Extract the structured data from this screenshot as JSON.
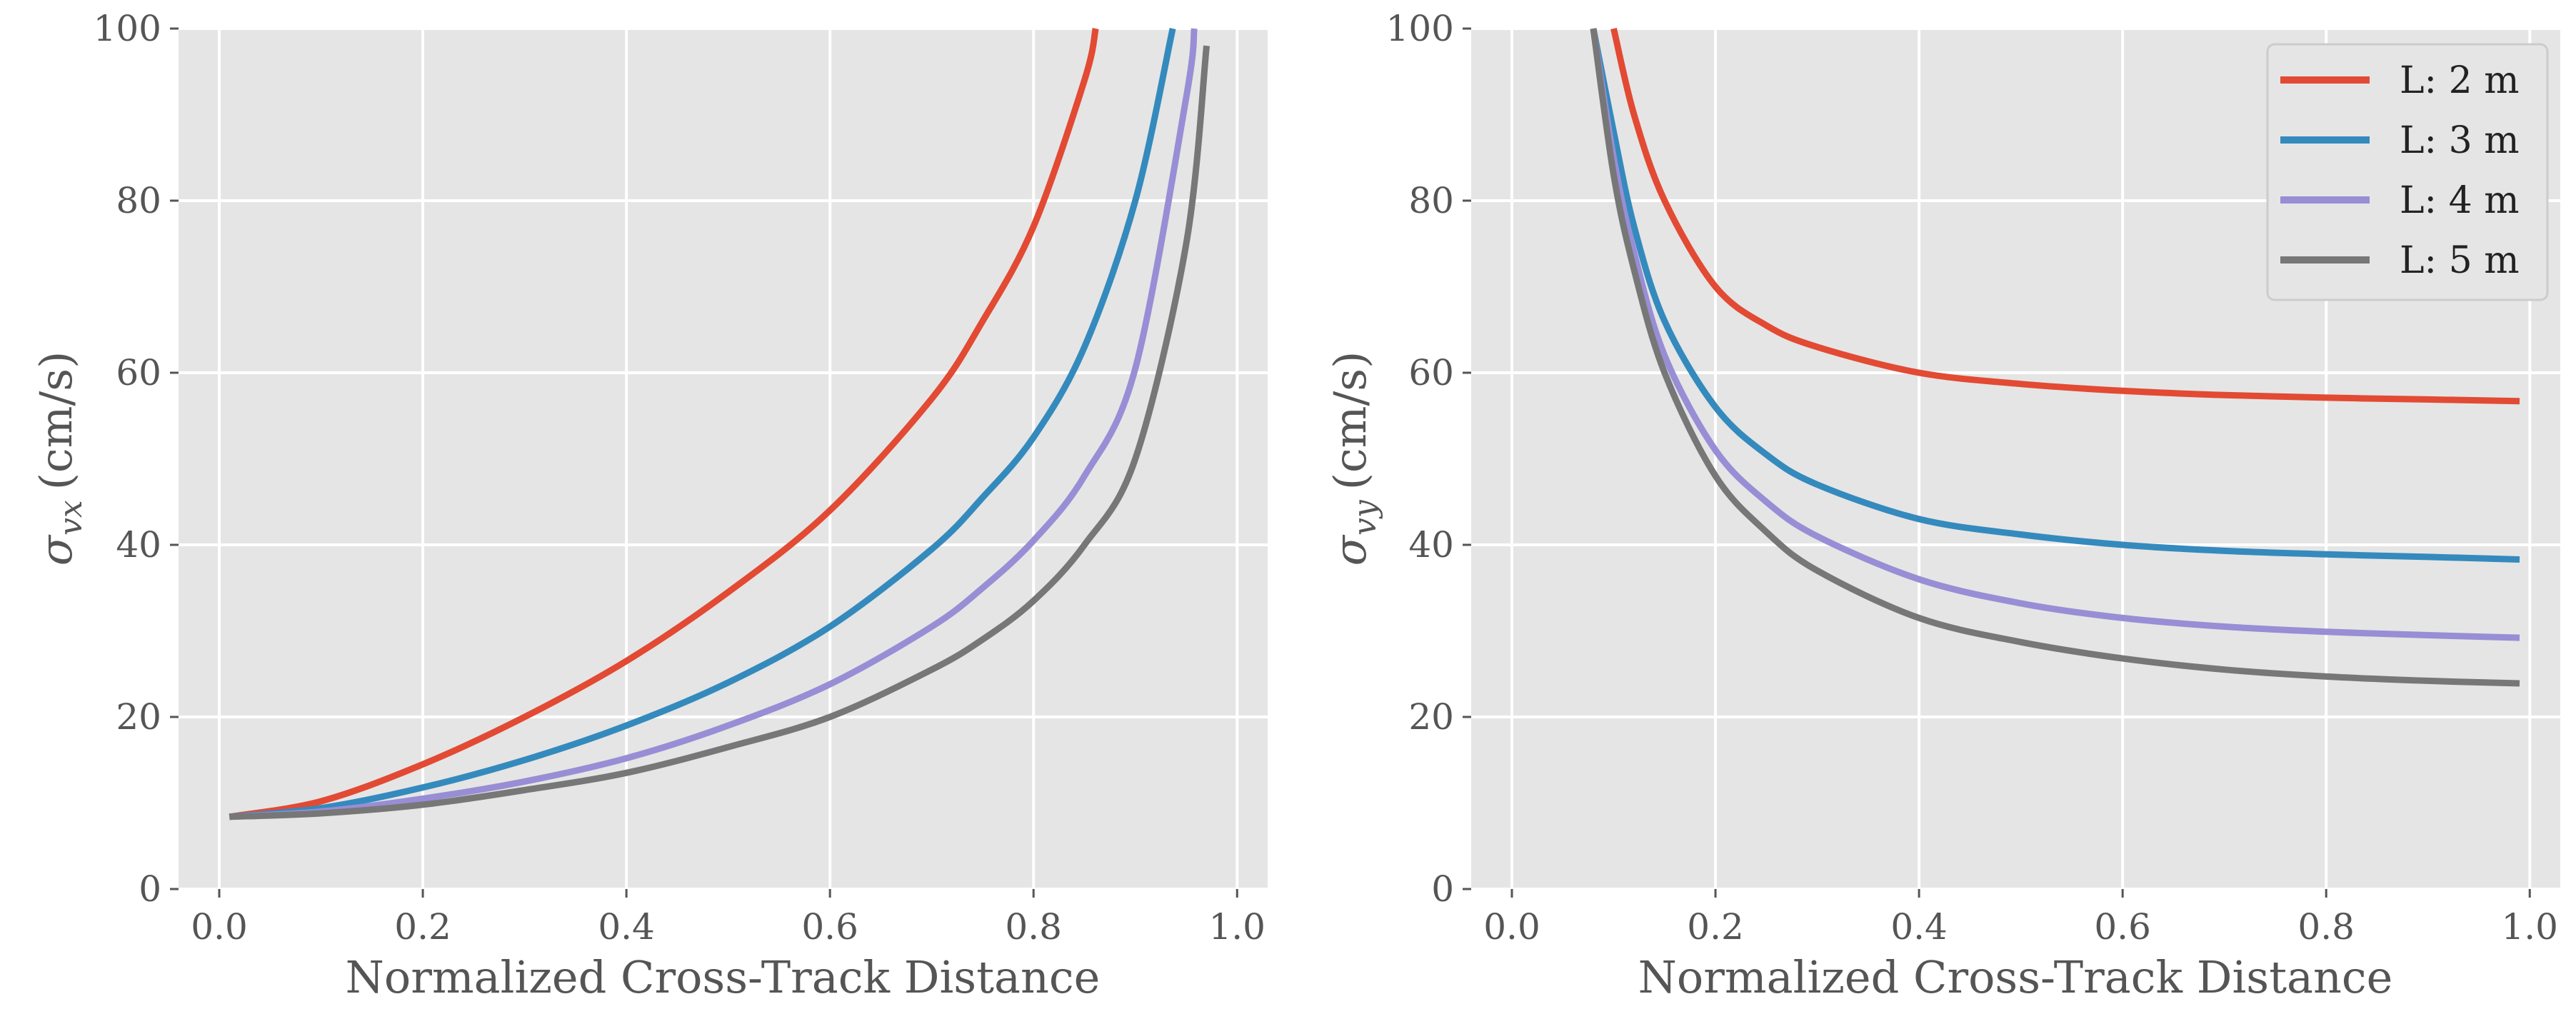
{
  "chart_data": [
    {
      "type": "line",
      "title": "",
      "xlabel": "Normalized Cross-Track Distance",
      "ylabel": "σ",
      "ylabel_subscript": "vx",
      "ylabel_unit": "(cm/s)",
      "xlim": [
        -0.04,
        1.03
      ],
      "ylim": [
        0,
        100
      ],
      "xticks": [
        "0.0",
        "0.2",
        "0.4",
        "0.6",
        "0.8",
        "1.0"
      ],
      "yticks": [
        "0",
        "20",
        "40",
        "60",
        "80",
        "100"
      ],
      "grid": true,
      "x": [
        0.01,
        0.1,
        0.2,
        0.3,
        0.4,
        0.5,
        0.6,
        0.7,
        0.75,
        0.8,
        0.85,
        0.9,
        0.95,
        0.97
      ],
      "series": [
        {
          "name": "L: 2 m",
          "color": "#E24A33",
          "values": [
            8.4,
            10.2,
            14.5,
            20.0,
            26.5,
            34.5,
            44.0,
            57.0,
            66.0,
            77.0,
            94.0,
            null,
            null,
            null
          ]
        },
        {
          "name": "L: 3 m",
          "color": "#348ABD",
          "values": [
            8.4,
            9.4,
            11.8,
            15.0,
            19.0,
            24.0,
            30.5,
            39.5,
            45.5,
            52.5,
            63.0,
            80.0,
            null,
            null
          ]
        },
        {
          "name": "L: 4 m",
          "color": "#988ED5",
          "values": [
            8.4,
            9.0,
            10.5,
            12.5,
            15.2,
            19.0,
            23.8,
            30.5,
            35.0,
            40.5,
            48.0,
            60.5,
            92.0,
            null
          ]
        },
        {
          "name": "L: 5 m",
          "color": "#777777",
          "values": [
            8.4,
            8.8,
            9.8,
            11.5,
            13.5,
            16.5,
            20.0,
            25.5,
            29.0,
            33.5,
            40.0,
            50.0,
            75.0,
            98.0
          ]
        }
      ]
    },
    {
      "type": "line",
      "title": "",
      "xlabel": "Normalized Cross-Track Distance",
      "ylabel": "σ",
      "ylabel_subscript": "vy",
      "ylabel_unit": "(cm/s)",
      "xlim": [
        -0.04,
        1.03
      ],
      "ylim": [
        0,
        100
      ],
      "xticks": [
        "0.0",
        "0.2",
        "0.4",
        "0.6",
        "0.8",
        "1.0"
      ],
      "yticks": [
        "0",
        "20",
        "40",
        "60",
        "80",
        "100"
      ],
      "grid": true,
      "legend_position": "top-right",
      "x": [
        0.08,
        0.1,
        0.12,
        0.15,
        0.2,
        0.25,
        0.3,
        0.4,
        0.5,
        0.6,
        0.7,
        0.8,
        0.9,
        0.99
      ],
      "series": [
        {
          "name": "L: 2 m",
          "color": "#E24A33",
          "values": [
            null,
            100,
            90,
            80,
            70,
            65.5,
            63,
            60,
            58.7,
            57.9,
            57.4,
            57.1,
            56.9,
            56.7
          ]
        },
        {
          "name": "L: 3 m",
          "color": "#348ABD",
          "values": [
            100,
            88,
            77,
            66,
            56,
            50.5,
            47,
            43,
            41.2,
            40,
            39.3,
            38.9,
            38.6,
            38.3
          ]
        },
        {
          "name": "L: 4 m",
          "color": "#988ED5",
          "values": [
            100,
            85,
            74,
            62,
            51,
            45,
            41,
            36,
            33.2,
            31.5,
            30.5,
            29.9,
            29.5,
            29.2
          ]
        },
        {
          "name": "L: 5 m",
          "color": "#777777",
          "values": [
            100,
            83,
            72,
            60,
            48,
            41.5,
            37,
            31.5,
            28.7,
            26.8,
            25.5,
            24.7,
            24.2,
            23.9
          ]
        }
      ]
    }
  ]
}
